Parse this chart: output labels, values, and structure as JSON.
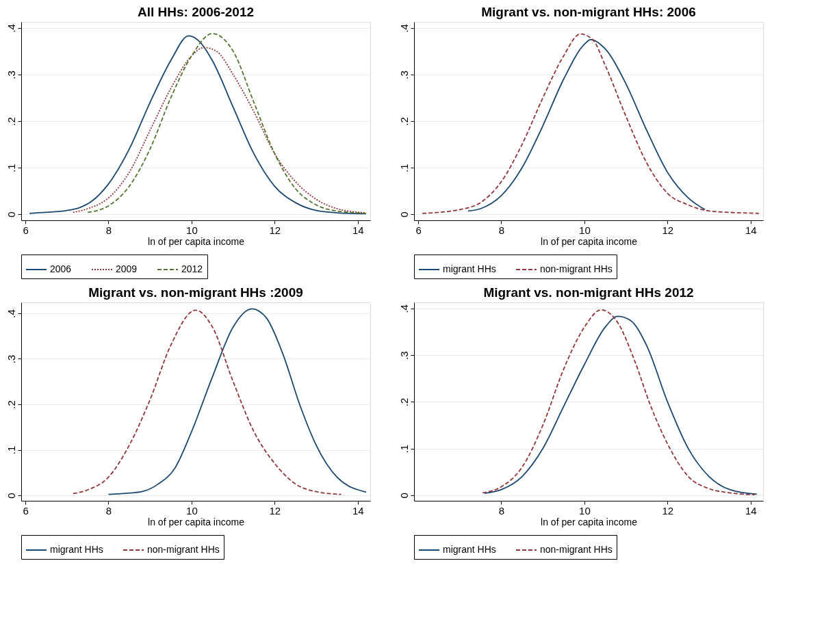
{
  "chart_data": [
    {
      "type": "line",
      "title": "All HHs: 2006-2012",
      "xlabel": "ln of per capita income",
      "xlim": [
        5.9,
        14.3
      ],
      "ylim": [
        -0.013,
        0.413
      ],
      "xticks": [
        6,
        8,
        10,
        12,
        14
      ],
      "yticks": [
        {
          "value": 0,
          "label": "0"
        },
        {
          "value": 0.1,
          "label": ".1"
        },
        {
          "value": 0.2,
          "label": ".2"
        },
        {
          "value": 0.3,
          "label": ".3"
        },
        {
          "value": 0.4,
          "label": ".4"
        }
      ],
      "grid": "y",
      "legend": "bottom",
      "series": [
        {
          "name": "2006",
          "color": "#1a476f",
          "line_style": "solid",
          "x": [
            6.1,
            6.5,
            7,
            7.3,
            7.6,
            8,
            8.5,
            9,
            9.5,
            9.93,
            10.2,
            10.5,
            11,
            11.5,
            12,
            12.5,
            13,
            13.5,
            14.2
          ],
          "values": [
            0.002,
            0.004,
            0.008,
            0.014,
            0.028,
            0.065,
            0.14,
            0.24,
            0.33,
            0.383,
            0.37,
            0.33,
            0.23,
            0.13,
            0.06,
            0.025,
            0.008,
            0.003,
            0.001
          ]
        },
        {
          "name": "2009",
          "color": "#90353b",
          "line_style": "dotted",
          "x": [
            7.15,
            7.5,
            8,
            8.5,
            9,
            9.5,
            10,
            10.3,
            10.6,
            11,
            11.5,
            12,
            12.5,
            13,
            13.5,
            14.2
          ],
          "values": [
            0.004,
            0.012,
            0.035,
            0.09,
            0.18,
            0.27,
            0.34,
            0.358,
            0.35,
            0.3,
            0.22,
            0.13,
            0.07,
            0.032,
            0.012,
            0.003
          ]
        },
        {
          "name": "2012",
          "color": "#55752f",
          "line_style": "dashed",
          "x": [
            7.5,
            8,
            8.5,
            9,
            9.5,
            10,
            10.5,
            11,
            11.5,
            12,
            12.5,
            13,
            13.5,
            14.2
          ],
          "values": [
            0.004,
            0.018,
            0.06,
            0.14,
            0.25,
            0.34,
            0.388,
            0.35,
            0.24,
            0.13,
            0.055,
            0.02,
            0.007,
            0.002
          ]
        }
      ]
    },
    {
      "type": "line",
      "title": "Migrant vs. non-migrant HHs: 2006",
      "xlabel": "ln of per capita income",
      "xlim": [
        5.9,
        14.3
      ],
      "ylim": [
        -0.013,
        0.413
      ],
      "xticks": [
        6,
        8,
        10,
        12,
        14
      ],
      "yticks": [
        {
          "value": 0,
          "label": "0"
        },
        {
          "value": 0.1,
          "label": ".1"
        },
        {
          "value": 0.2,
          "label": ".2"
        },
        {
          "value": 0.3,
          "label": ".3"
        },
        {
          "value": 0.4,
          "label": ".4"
        }
      ],
      "grid": "y",
      "legend": "bottom",
      "series": [
        {
          "name": "migrant HHs",
          "color": "#1a476f",
          "line_style": "solid",
          "x": [
            7.2,
            7.5,
            8,
            8.5,
            9,
            9.5,
            10,
            10.15,
            10.5,
            11,
            11.5,
            12,
            12.5,
            12.9
          ],
          "values": [
            0.007,
            0.012,
            0.04,
            0.1,
            0.19,
            0.29,
            0.365,
            0.375,
            0.355,
            0.28,
            0.18,
            0.09,
            0.035,
            0.01
          ]
        },
        {
          "name": "non-migrant HHs",
          "color": "#90353b",
          "line_style": "dashed",
          "x": [
            6.1,
            6.5,
            7,
            7.5,
            8,
            8.5,
            9,
            9.5,
            9.9,
            10.2,
            10.5,
            11,
            11.5,
            12,
            12.5,
            13,
            13.5,
            14.2
          ],
          "values": [
            0.002,
            0.004,
            0.01,
            0.025,
            0.07,
            0.15,
            0.25,
            0.34,
            0.387,
            0.375,
            0.32,
            0.21,
            0.11,
            0.045,
            0.02,
            0.007,
            0.004,
            0.002
          ]
        }
      ]
    },
    {
      "type": "line",
      "title": "Migrant vs. non-migrant HHs :2009",
      "xlabel": "ln of per capita income",
      "xlim": [
        5.9,
        14.3
      ],
      "ylim": [
        -0.012,
        0.424
      ],
      "xticks": [
        6,
        8,
        10,
        12,
        14
      ],
      "yticks": [
        {
          "value": 0,
          "label": "0"
        },
        {
          "value": 0.1,
          "label": ".1"
        },
        {
          "value": 0.2,
          "label": ".2"
        },
        {
          "value": 0.3,
          "label": ".3"
        },
        {
          "value": 0.4,
          "label": ".4"
        }
      ],
      "grid": "y",
      "legend": "bottom",
      "series": [
        {
          "name": "migrant HHs",
          "color": "#1a476f",
          "line_style": "solid",
          "x": [
            8,
            8.5,
            8.8,
            9.2,
            9.6,
            10,
            10.5,
            11,
            11.45,
            11.8,
            12.2,
            12.6,
            13,
            13.5,
            14.2
          ],
          "values": [
            0.002,
            0.005,
            0.008,
            0.025,
            0.06,
            0.14,
            0.26,
            0.37,
            0.41,
            0.39,
            0.31,
            0.2,
            0.11,
            0.04,
            0.007
          ]
        },
        {
          "name": "non-migrant HHs",
          "color": "#90353b",
          "line_style": "dashed",
          "x": [
            7.15,
            7.5,
            8,
            8.5,
            9,
            9.5,
            10.1,
            10.5,
            11,
            11.5,
            12,
            12.5,
            13,
            13.6
          ],
          "values": [
            0.004,
            0.012,
            0.04,
            0.11,
            0.21,
            0.33,
            0.407,
            0.37,
            0.25,
            0.14,
            0.07,
            0.025,
            0.008,
            0.002
          ]
        }
      ]
    },
    {
      "type": "line",
      "title": "Migrant vs. non-migrant HHs 2012",
      "xlabel": "ln of per capita income",
      "xlim": [
        5.9,
        14.3
      ],
      "ylim": [
        -0.012,
        0.413
      ],
      "xticks": [
        8,
        10,
        12,
        14
      ],
      "yticks": [
        {
          "value": 0,
          "label": "0"
        },
        {
          "value": 0.1,
          "label": ".1"
        },
        {
          "value": 0.2,
          "label": ".2"
        },
        {
          "value": 0.3,
          "label": ".3"
        },
        {
          "value": 0.4,
          "label": ".4"
        }
      ],
      "grid": "y",
      "legend": "bottom",
      "series": [
        {
          "name": "migrant HHs",
          "color": "#1a476f",
          "line_style": "solid",
          "x": [
            7.6,
            8,
            8.5,
            9,
            9.5,
            10,
            10.5,
            10.8,
            11.1,
            11.5,
            12,
            12.5,
            13,
            13.5,
            14.15
          ],
          "values": [
            0.004,
            0.012,
            0.04,
            0.1,
            0.19,
            0.28,
            0.36,
            0.383,
            0.375,
            0.32,
            0.2,
            0.1,
            0.04,
            0.012,
            0.002
          ]
        },
        {
          "name": "non-migrant HHs",
          "color": "#90353b",
          "line_style": "dashed",
          "x": [
            7.55,
            8,
            8.5,
            9,
            9.5,
            10,
            10.4,
            10.8,
            11.2,
            11.6,
            12,
            12.5,
            13,
            13.5,
            14.1
          ],
          "values": [
            0.005,
            0.018,
            0.06,
            0.15,
            0.27,
            0.36,
            0.397,
            0.37,
            0.29,
            0.19,
            0.11,
            0.04,
            0.014,
            0.005,
            0.001
          ]
        }
      ]
    }
  ]
}
